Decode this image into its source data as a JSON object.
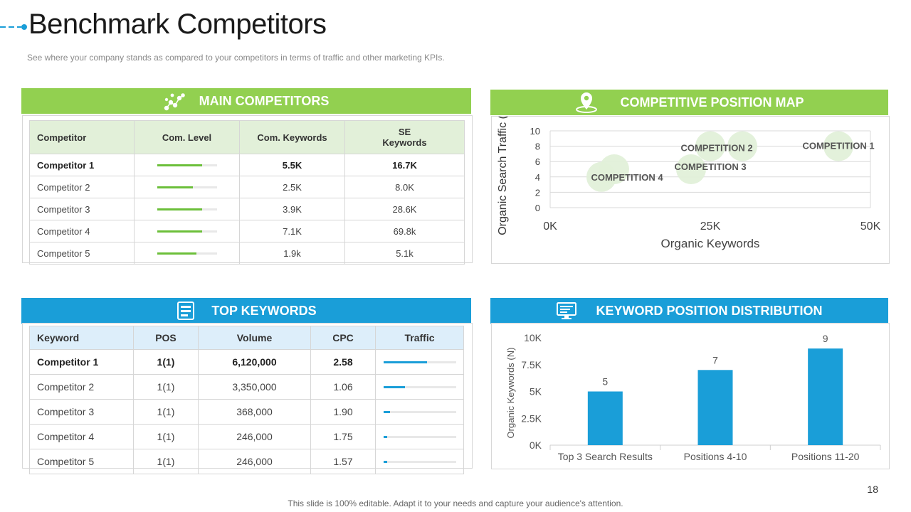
{
  "page": {
    "title": "Benchmark Competitors",
    "subtitle": "See where your company stands as compared to your competitors in terms of traffic and other marketing KPIs.",
    "footer": "This slide is 100% editable. Adapt it to your needs and capture your audience's attention.",
    "page_number": "18"
  },
  "main_competitors": {
    "heading": "MAIN COMPETITORS",
    "icon": "network-nodes-icon",
    "columns": [
      "Competitor",
      "Com. Level",
      "Com. Keywords",
      "SE Keywords"
    ],
    "rows": [
      {
        "name": "Competitor 1",
        "level": 0.75,
        "keywords": "5.5K",
        "se_keywords": "16.7K"
      },
      {
        "name": "Competitor 2",
        "level": 0.6,
        "keywords": "2.5K",
        "se_keywords": "8.0K"
      },
      {
        "name": "Competitor 3",
        "level": 0.75,
        "keywords": "3.9K",
        "se_keywords": "28.6K"
      },
      {
        "name": "Competitor 4",
        "level": 0.75,
        "keywords": "7.1K",
        "se_keywords": "69.8k"
      },
      {
        "name": "Competitor 5",
        "level": 0.66,
        "keywords": "1.9k",
        "se_keywords": "5.1k"
      }
    ]
  },
  "position_map": {
    "heading": "COMPETITIVE POSITION MAP",
    "icon": "map-pin-icon"
  },
  "top_keywords": {
    "heading": "TOP KEYWORDS",
    "icon": "document-stack-icon",
    "columns": [
      "Keyword",
      "POS",
      "Volume",
      "CPC",
      "Traffic"
    ],
    "rows": [
      {
        "keyword": "Competitor 1",
        "pos": "1(1)",
        "volume": "6,120,000",
        "cpc": "2.58",
        "traffic": 0.6
      },
      {
        "keyword": "Competitor 2",
        "pos": "1(1)",
        "volume": "3,350,000",
        "cpc": "1.06",
        "traffic": 0.3
      },
      {
        "keyword": "Competitor 3",
        "pos": "1(1)",
        "volume": "368,000",
        "cpc": "1.90",
        "traffic": 0.09
      },
      {
        "keyword": "Competitor 4",
        "pos": "1(1)",
        "volume": "246,000",
        "cpc": "1.75",
        "traffic": 0.05
      },
      {
        "keyword": "Competitor 5",
        "pos": "1(1)",
        "volume": "246,000",
        "cpc": "1.57",
        "traffic": 0.05
      }
    ]
  },
  "distribution": {
    "heading": "KEYWORD POSITION DISTRIBUTION",
    "icon": "monitor-chart-icon"
  },
  "chart_data": [
    {
      "type": "scatter",
      "xlabel": "Organic Keywords",
      "ylabel": "Organic Search Traffic (N)",
      "xlim": [
        0,
        50000
      ],
      "ylim": [
        0,
        10
      ],
      "xticks": [
        "0K",
        "25K",
        "50K"
      ],
      "yticks": [
        "0",
        "2",
        "4",
        "6",
        "8",
        "10"
      ],
      "grid": true,
      "color": "#e2f0d9",
      "points": [
        {
          "label": "COMPETITION 1",
          "x": 45000,
          "y": 8
        },
        {
          "label": "COMPETITION 2",
          "x": 25000,
          "y": 8
        },
        {
          "label": "COMPETITION 2",
          "x": 30000,
          "y": 8
        },
        {
          "label": "COMPETITION 3",
          "x": 22000,
          "y": 5
        },
        {
          "label": "COMPETITION 4",
          "x": 8000,
          "y": 4
        },
        {
          "label": "COMPETITION 4",
          "x": 10000,
          "y": 5
        }
      ],
      "visible_labels": [
        {
          "text": "COMPETITION 1"
        },
        {
          "text": "COMPETITION 2"
        },
        {
          "text": "COMPETITION 3"
        },
        {
          "text": "COMPETITION 4"
        }
      ]
    },
    {
      "type": "bar",
      "categories": [
        "Top 3 Search Results",
        "Positions 4-10",
        "Positions 11-20"
      ],
      "values": [
        5,
        7,
        9
      ],
      "ylabel": "Organic Keywords (N)",
      "ylim": [
        0,
        10
      ],
      "yticks": [
        "0K",
        "2.5K",
        "5K",
        "7.5K",
        "10K"
      ],
      "color": "#1a9ed8"
    }
  ]
}
